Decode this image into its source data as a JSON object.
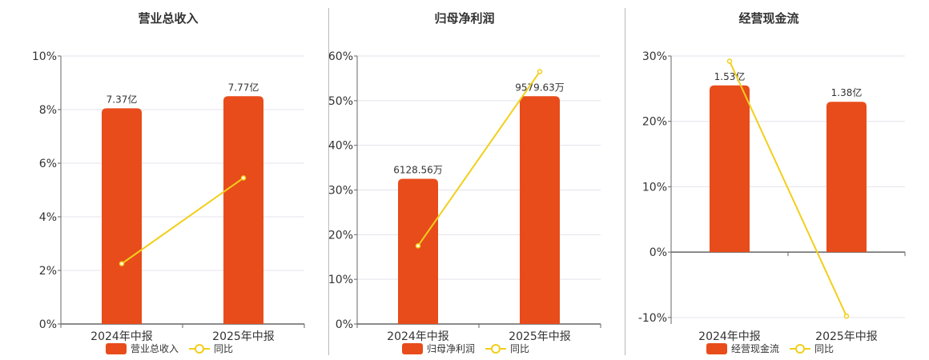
{
  "colors": {
    "bar": "#e84c1b",
    "line": "#f2cf1b",
    "grid": "#e3e3ec",
    "axis": "#666666"
  },
  "chart_data": [
    {
      "type": "bar",
      "title": "营业总收入",
      "categories": [
        "2024年中报",
        "2025年中报"
      ],
      "bar_data_labels": [
        "7.37亿",
        "7.77亿"
      ],
      "y_ticks": [
        "0%",
        "2%",
        "4%",
        "6%",
        "8%",
        "10%"
      ],
      "ylim": [
        0,
        10
      ],
      "series": [
        {
          "name": "营业总收入",
          "type": "bar",
          "values": [
            8.05,
            8.5
          ]
        },
        {
          "name": "同比",
          "type": "line",
          "values": [
            2.25,
            5.45
          ]
        }
      ],
      "legend": [
        "营业总收入",
        "同比"
      ]
    },
    {
      "type": "bar",
      "title": "归母净利润",
      "categories": [
        "2024年中报",
        "2025年中报"
      ],
      "bar_data_labels": [
        "6128.56万",
        "9579.63万"
      ],
      "y_ticks": [
        "0%",
        "10%",
        "20%",
        "30%",
        "40%",
        "50%",
        "60%"
      ],
      "ylim": [
        0,
        60
      ],
      "series": [
        {
          "name": "归母净利润",
          "type": "bar",
          "values": [
            32.5,
            51.0
          ]
        },
        {
          "name": "同比",
          "type": "line",
          "values": [
            17.5,
            56.5
          ]
        }
      ],
      "legend": [
        "归母净利润",
        "同比"
      ]
    },
    {
      "type": "bar",
      "title": "经营现金流",
      "categories": [
        "2024年中报",
        "2025年中报"
      ],
      "bar_data_labels": [
        "1.53亿",
        "1.38亿"
      ],
      "y_ticks": [
        "-10%",
        "0%",
        "10%",
        "20%",
        "30%"
      ],
      "ylim": [
        -11,
        30
      ],
      "series": [
        {
          "name": "经营现金流",
          "type": "bar",
          "values": [
            25.5,
            23.0
          ]
        },
        {
          "name": "同比",
          "type": "line",
          "values": [
            29.2,
            -9.8
          ]
        }
      ],
      "legend": [
        "经营现金流",
        "同比"
      ]
    }
  ]
}
